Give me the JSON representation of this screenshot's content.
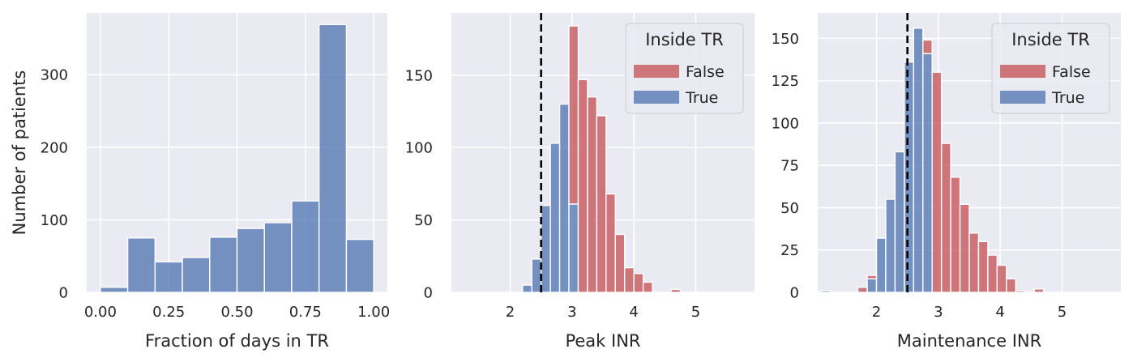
{
  "colors": {
    "panel_bg": "#eaeaf2",
    "grid": "#ffffff",
    "text": "#262626",
    "true_series": "#4c72b0",
    "false_series": "#c44e52",
    "reference_line": "#000000"
  },
  "chart_data": [
    {
      "type": "bar",
      "histogram": true,
      "xlabel": "Fraction of days in TR",
      "ylabel": "Number of patients",
      "xlim": [
        -0.05,
        1.05
      ],
      "ylim": [
        0,
        385
      ],
      "xticks": [
        0.0,
        0.25,
        0.5,
        0.75,
        1.0
      ],
      "xtick_labels": [
        "0.00",
        "0.25",
        "0.50",
        "0.75",
        "1.00"
      ],
      "yticks": [
        0,
        100,
        200,
        300
      ],
      "ytick_labels": [
        "0",
        "100",
        "200",
        "300"
      ],
      "grid": true,
      "bin_edges": [
        0.0,
        0.1,
        0.2,
        0.3,
        0.4,
        0.5,
        0.6,
        0.7,
        0.8,
        0.9,
        1.0
      ],
      "series": [
        {
          "values": [
            7,
            75,
            42,
            48,
            76,
            88,
            96,
            126,
            369,
            73
          ],
          "color_key": "true_series"
        }
      ]
    },
    {
      "type": "bar",
      "histogram": true,
      "stacked": true,
      "xlabel": "Peak INR",
      "ylabel": "",
      "xlim": [
        1.05,
        5.95
      ],
      "ylim": [
        0,
        193
      ],
      "xticks": [
        2,
        3,
        4,
        5
      ],
      "xtick_labels": [
        "2",
        "3",
        "4",
        "5"
      ],
      "yticks": [
        0,
        50,
        100,
        150
      ],
      "ytick_labels": [
        "0",
        "50",
        "100",
        "150"
      ],
      "grid": true,
      "reference_line_x": 2.5,
      "legend": {
        "title": "Inside TR",
        "position": "top-right",
        "entries": [
          "False",
          "True"
        ]
      },
      "bin_edges": [
        2.2,
        2.35,
        2.5,
        2.65,
        2.8,
        2.95,
        3.1,
        3.25,
        3.4,
        3.55,
        3.7,
        3.85,
        4.0,
        4.15,
        4.3,
        4.45,
        4.6,
        4.75
      ],
      "series": [
        {
          "name": "True",
          "color_key": "true_series",
          "values": [
            5,
            23,
            60,
            103,
            130,
            61,
            0,
            0,
            0,
            0,
            0,
            0,
            0,
            0,
            0,
            0,
            0
          ]
        },
        {
          "name": "False",
          "color_key": "false_series",
          "values": [
            0,
            0,
            0,
            0,
            0,
            123,
            147,
            135,
            122,
            68,
            40,
            17,
            13,
            7,
            0,
            0,
            2
          ]
        }
      ]
    },
    {
      "type": "bar",
      "histogram": true,
      "stacked": true,
      "xlabel": "Maintenance INR",
      "ylabel": "",
      "xlim": [
        1.05,
        5.95
      ],
      "ylim": [
        0,
        165
      ],
      "xticks": [
        2,
        3,
        4,
        5
      ],
      "xtick_labels": [
        "2",
        "3",
        "4",
        "5"
      ],
      "yticks": [
        0,
        25,
        50,
        75,
        100,
        125,
        150
      ],
      "ytick_labels": [
        "0",
        "25",
        "50",
        "75",
        "100",
        "125",
        "150"
      ],
      "grid": true,
      "reference_line_x": 2.5,
      "legend": {
        "title": "Inside TR",
        "position": "top-right",
        "entries": [
          "False",
          "True"
        ]
      },
      "bin_edges": [
        1.1,
        1.25,
        1.4,
        1.55,
        1.7,
        1.85,
        2.0,
        2.15,
        2.3,
        2.45,
        2.6,
        2.75,
        2.9,
        3.05,
        3.2,
        3.35,
        3.5,
        3.65,
        3.8,
        3.95,
        4.1,
        4.25,
        4.4,
        4.55,
        4.7,
        4.85
      ],
      "series": [
        {
          "name": "True",
          "color_key": "true_series",
          "values": [
            1,
            0,
            0,
            0,
            0,
            8,
            32,
            55,
            83,
            136,
            156,
            141,
            0,
            0,
            0,
            0,
            0,
            0,
            0,
            0,
            0,
            0,
            0,
            0,
            0
          ]
        },
        {
          "name": "False",
          "color_key": "false_series",
          "values": [
            0,
            0,
            0,
            0,
            3,
            2,
            0,
            0,
            0,
            0,
            0,
            8,
            130,
            88,
            68,
            52,
            35,
            30,
            22,
            16,
            8,
            1,
            0,
            2,
            0
          ]
        }
      ]
    }
  ]
}
